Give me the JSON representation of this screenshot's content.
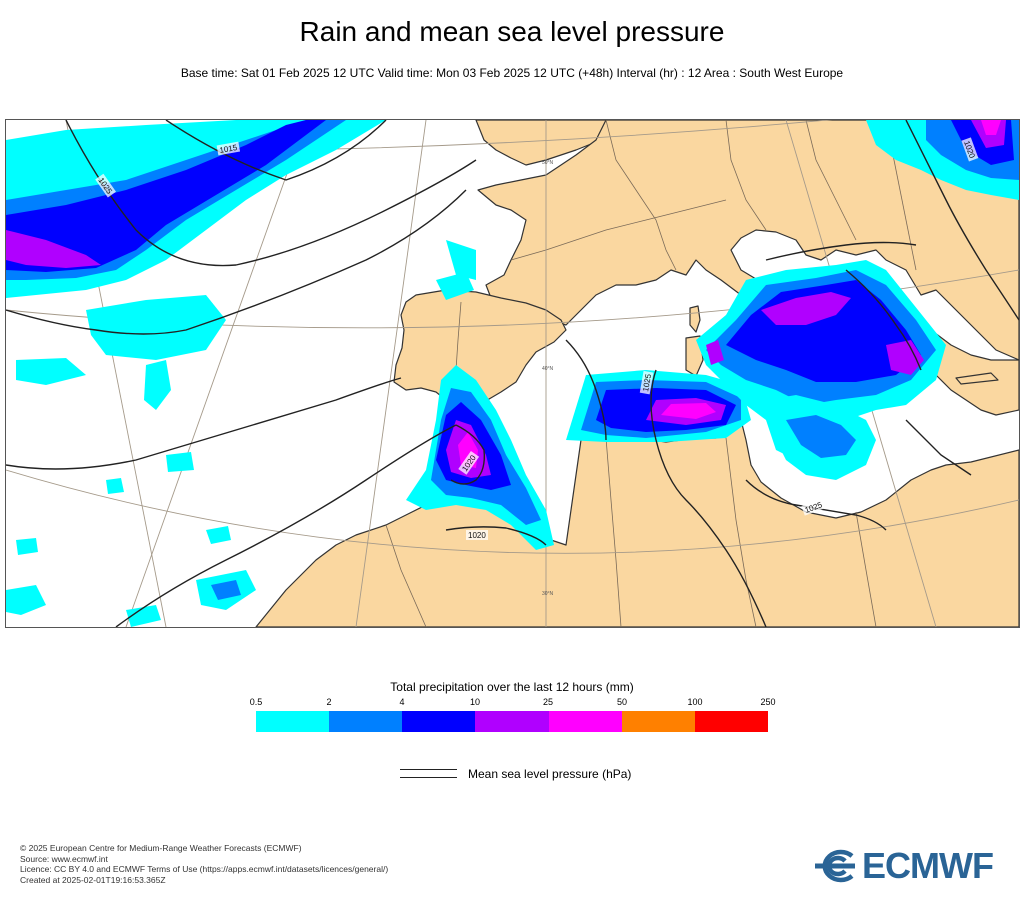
{
  "header": {
    "title": "Rain and mean sea level pressure",
    "subtitle": "Base time: Sat 01 Feb 2025 12 UTC Valid time: Mon 03 Feb 2025 12 UTC (+48h) Interval (hr) : 12 Area : South West Europe"
  },
  "map": {
    "isobar_labels": [
      "1015",
      "1025",
      "1020",
      "1020",
      "1025",
      "1025",
      "1020",
      "1025"
    ],
    "latitude_labels": [
      "50°N",
      "40°N",
      "30°N"
    ],
    "colors": {
      "land": "#fad7a0",
      "sea": "#ffffff",
      "coast": "#333333",
      "isobar": "#222222",
      "graticule": "#a59a8a"
    }
  },
  "legend": {
    "title": "Total precipitation over the last 12 hours (mm)",
    "ticks": [
      "0.5",
      "2",
      "4",
      "10",
      "25",
      "50",
      "100",
      "250"
    ],
    "colors": [
      "#00ffff",
      "#0080ff",
      "#0000ff",
      "#b000ff",
      "#ff00ff",
      "#ff8000",
      "#ff0000"
    ],
    "msl_label": "Mean sea level pressure (hPa)"
  },
  "footer": {
    "lines": [
      "© 2025 European Centre for Medium-Range Weather Forecasts (ECMWF)",
      "Source: www.ecmwf.int",
      "Licence: CC BY 4.0 and ECMWF Terms of Use (https://apps.ecmwf.int/datasets/licences/general/)",
      "Created at 2025-02-01T19:16:53.365Z"
    ],
    "logo_text": "ECMWF",
    "logo_color": "#2a6496"
  }
}
